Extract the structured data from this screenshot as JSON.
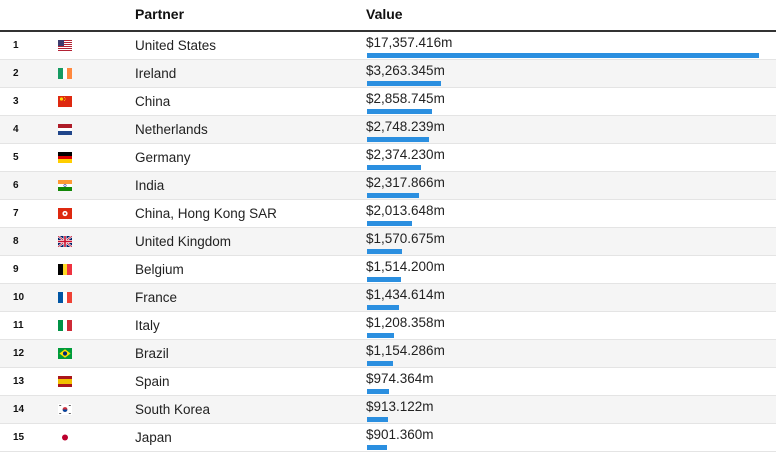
{
  "header": {
    "partner_label": "Partner",
    "value_label": "Value"
  },
  "colors": {
    "bar": "#2b8fe0"
  },
  "chart_data": {
    "type": "bar",
    "xlabel": "Partner",
    "ylabel": "Value",
    "unit": "USD millions",
    "xlim": [
      0,
      17357.416
    ],
    "rows": [
      {
        "rank": "1",
        "flag": "us-flag-icon",
        "partner": "United States",
        "value": 17357.416,
        "value_label": "$17,357.416m"
      },
      {
        "rank": "2",
        "flag": "ie-flag-icon",
        "partner": "Ireland",
        "value": 3263.345,
        "value_label": "$3,263.345m"
      },
      {
        "rank": "3",
        "flag": "cn-flag-icon",
        "partner": "China",
        "value": 2858.745,
        "value_label": "$2,858.745m"
      },
      {
        "rank": "4",
        "flag": "nl-flag-icon",
        "partner": "Netherlands",
        "value": 2748.239,
        "value_label": "$2,748.239m"
      },
      {
        "rank": "5",
        "flag": "de-flag-icon",
        "partner": "Germany",
        "value": 2374.23,
        "value_label": "$2,374.230m"
      },
      {
        "rank": "6",
        "flag": "in-flag-icon",
        "partner": "India",
        "value": 2317.866,
        "value_label": "$2,317.866m"
      },
      {
        "rank": "7",
        "flag": "hk-flag-icon",
        "partner": "China, Hong Kong SAR",
        "value": 2013.648,
        "value_label": "$2,013.648m"
      },
      {
        "rank": "8",
        "flag": "gb-flag-icon",
        "partner": "United Kingdom",
        "value": 1570.675,
        "value_label": "$1,570.675m"
      },
      {
        "rank": "9",
        "flag": "be-flag-icon",
        "partner": "Belgium",
        "value": 1514.2,
        "value_label": "$1,514.200m"
      },
      {
        "rank": "10",
        "flag": "fr-flag-icon",
        "partner": "France",
        "value": 1434.614,
        "value_label": "$1,434.614m"
      },
      {
        "rank": "11",
        "flag": "it-flag-icon",
        "partner": "Italy",
        "value": 1208.358,
        "value_label": "$1,208.358m"
      },
      {
        "rank": "12",
        "flag": "br-flag-icon",
        "partner": "Brazil",
        "value": 1154.286,
        "value_label": "$1,154.286m"
      },
      {
        "rank": "13",
        "flag": "es-flag-icon",
        "partner": "Spain",
        "value": 974.364,
        "value_label": "$974.364m"
      },
      {
        "rank": "14",
        "flag": "kr-flag-icon",
        "partner": "South Korea",
        "value": 913.122,
        "value_label": "$913.122m"
      },
      {
        "rank": "15",
        "flag": "jp-flag-icon",
        "partner": "Japan",
        "value": 901.36,
        "value_label": "$901.360m"
      }
    ]
  }
}
